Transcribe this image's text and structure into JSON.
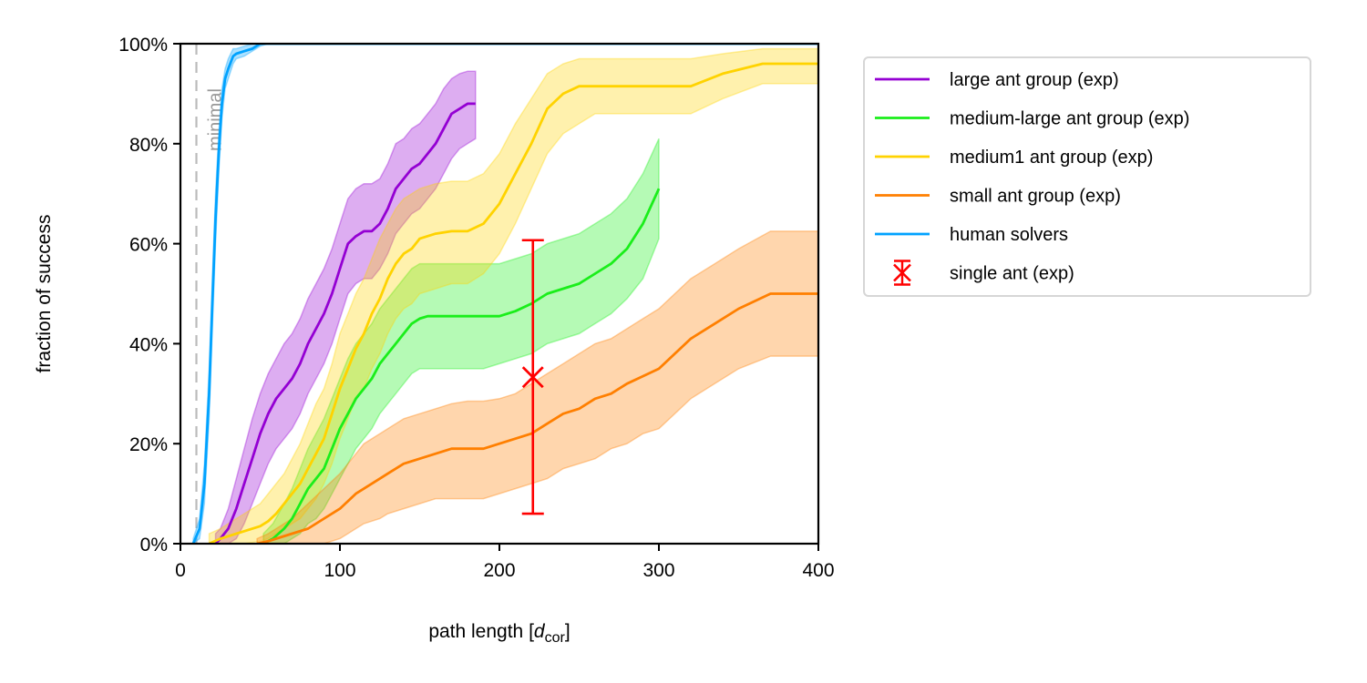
{
  "chart_data": {
    "type": "line",
    "xlabel": "path length [",
    "xlabel_symbol": "d",
    "xlabel_subscript": "cor",
    "xlabel_close": "]",
    "ylabel": "fraction of success",
    "xlim": [
      0,
      400
    ],
    "ylim": [
      0,
      1
    ],
    "xticks": [
      0,
      100,
      200,
      300,
      400
    ],
    "xtick_labels": [
      "0",
      "100",
      "200",
      "300",
      "400"
    ],
    "yticks": [
      0,
      0.2,
      0.4,
      0.6,
      0.8,
      1.0
    ],
    "ytick_labels": [
      "0%",
      "20%",
      "40%",
      "60%",
      "80%",
      "100%"
    ],
    "grid": false,
    "legend_position": "outside-right-top",
    "reference_line": {
      "x": 10,
      "label": "minimal",
      "color": "#bbbbbb",
      "style": "dashed"
    },
    "series": [
      {
        "name": "large ant group (exp)",
        "color": "#9400d3",
        "x": [
          22,
          25,
          30,
          35,
          40,
          45,
          50,
          55,
          60,
          65,
          70,
          75,
          80,
          85,
          90,
          95,
          100,
          105,
          110,
          115,
          120,
          125,
          130,
          135,
          140,
          145,
          150,
          155,
          160,
          165,
          170,
          175,
          180,
          185
        ],
        "y": [
          0,
          0.01,
          0.03,
          0.07,
          0.12,
          0.17,
          0.22,
          0.26,
          0.29,
          0.31,
          0.33,
          0.36,
          0.4,
          0.43,
          0.46,
          0.5,
          0.55,
          0.6,
          0.615,
          0.625,
          0.625,
          0.64,
          0.67,
          0.71,
          0.73,
          0.75,
          0.76,
          0.78,
          0.8,
          0.83,
          0.86,
          0.87,
          0.88,
          0.88
        ],
        "lower": [
          0,
          0.0,
          0.0,
          0.01,
          0.04,
          0.08,
          0.12,
          0.16,
          0.19,
          0.21,
          0.23,
          0.26,
          0.3,
          0.33,
          0.36,
          0.4,
          0.45,
          0.5,
          0.52,
          0.53,
          0.53,
          0.55,
          0.58,
          0.62,
          0.64,
          0.66,
          0.67,
          0.69,
          0.71,
          0.74,
          0.77,
          0.79,
          0.8,
          0.81
        ],
        "upper": [
          0.02,
          0.03,
          0.07,
          0.13,
          0.19,
          0.25,
          0.3,
          0.34,
          0.37,
          0.4,
          0.42,
          0.45,
          0.49,
          0.52,
          0.55,
          0.59,
          0.64,
          0.69,
          0.71,
          0.72,
          0.72,
          0.73,
          0.76,
          0.8,
          0.81,
          0.83,
          0.84,
          0.86,
          0.88,
          0.91,
          0.93,
          0.94,
          0.945,
          0.945
        ]
      },
      {
        "name": "medium-large ant group (exp)",
        "color": "#1aee1a",
        "x": [
          52,
          58,
          65,
          70,
          75,
          80,
          85,
          90,
          95,
          100,
          105,
          110,
          115,
          120,
          125,
          130,
          135,
          140,
          145,
          150,
          155,
          160,
          170,
          180,
          190,
          200,
          210,
          220,
          230,
          240,
          250,
          260,
          270,
          280,
          290,
          300
        ],
        "y": [
          0,
          0.01,
          0.03,
          0.05,
          0.08,
          0.11,
          0.13,
          0.15,
          0.19,
          0.23,
          0.26,
          0.29,
          0.31,
          0.33,
          0.36,
          0.38,
          0.4,
          0.42,
          0.44,
          0.45,
          0.455,
          0.455,
          0.455,
          0.455,
          0.455,
          0.455,
          0.465,
          0.48,
          0.5,
          0.51,
          0.52,
          0.54,
          0.56,
          0.59,
          0.64,
          0.71
        ],
        "lower": [
          0,
          0.0,
          0.0,
          0.01,
          0.02,
          0.04,
          0.05,
          0.07,
          0.1,
          0.13,
          0.16,
          0.19,
          0.21,
          0.23,
          0.26,
          0.28,
          0.3,
          0.32,
          0.34,
          0.35,
          0.35,
          0.35,
          0.35,
          0.35,
          0.35,
          0.36,
          0.37,
          0.38,
          0.4,
          0.41,
          0.42,
          0.44,
          0.46,
          0.49,
          0.53,
          0.61
        ],
        "upper": [
          0.02,
          0.04,
          0.08,
          0.11,
          0.15,
          0.19,
          0.22,
          0.25,
          0.29,
          0.33,
          0.37,
          0.4,
          0.42,
          0.44,
          0.47,
          0.49,
          0.51,
          0.53,
          0.55,
          0.56,
          0.56,
          0.56,
          0.56,
          0.56,
          0.56,
          0.56,
          0.57,
          0.58,
          0.6,
          0.61,
          0.62,
          0.64,
          0.66,
          0.69,
          0.74,
          0.81
        ]
      },
      {
        "name": "medium1 ant group (exp)",
        "color": "#ffd300",
        "x": [
          18,
          25,
          30,
          35,
          40,
          50,
          55,
          60,
          65,
          70,
          75,
          80,
          85,
          90,
          95,
          100,
          105,
          110,
          115,
          120,
          125,
          130,
          135,
          140,
          145,
          150,
          160,
          170,
          180,
          190,
          200,
          210,
          220,
          230,
          240,
          250,
          260,
          270,
          280,
          290,
          300,
          320,
          340,
          365,
          380,
          400
        ],
        "y": [
          0,
          0.01,
          0.015,
          0.02,
          0.025,
          0.035,
          0.045,
          0.06,
          0.08,
          0.1,
          0.12,
          0.15,
          0.18,
          0.21,
          0.26,
          0.31,
          0.35,
          0.39,
          0.42,
          0.46,
          0.49,
          0.53,
          0.56,
          0.58,
          0.59,
          0.61,
          0.62,
          0.625,
          0.625,
          0.64,
          0.68,
          0.74,
          0.8,
          0.87,
          0.9,
          0.915,
          0.915,
          0.915,
          0.915,
          0.915,
          0.915,
          0.915,
          0.94,
          0.96,
          0.96,
          0.96
        ],
        "lower": [
          0,
          0.0,
          0.0,
          0.0,
          0.0,
          0.005,
          0.01,
          0.02,
          0.03,
          0.04,
          0.05,
          0.07,
          0.09,
          0.12,
          0.16,
          0.21,
          0.25,
          0.29,
          0.31,
          0.35,
          0.38,
          0.42,
          0.45,
          0.47,
          0.48,
          0.5,
          0.51,
          0.52,
          0.52,
          0.54,
          0.58,
          0.64,
          0.71,
          0.78,
          0.82,
          0.84,
          0.86,
          0.86,
          0.86,
          0.86,
          0.86,
          0.86,
          0.89,
          0.92,
          0.92,
          0.92
        ],
        "upper": [
          0.02,
          0.03,
          0.04,
          0.05,
          0.06,
          0.08,
          0.1,
          0.12,
          0.14,
          0.17,
          0.2,
          0.24,
          0.28,
          0.31,
          0.36,
          0.42,
          0.46,
          0.5,
          0.53,
          0.57,
          0.61,
          0.64,
          0.67,
          0.69,
          0.7,
          0.71,
          0.72,
          0.725,
          0.725,
          0.74,
          0.78,
          0.84,
          0.89,
          0.94,
          0.96,
          0.97,
          0.97,
          0.97,
          0.97,
          0.97,
          0.97,
          0.97,
          0.98,
          0.99,
          0.99,
          0.99
        ]
      },
      {
        "name": "small ant group (exp)",
        "color": "#ff7f00",
        "x": [
          48,
          55,
          60,
          70,
          80,
          90,
          100,
          110,
          115,
          125,
          130,
          140,
          150,
          160,
          170,
          180,
          190,
          200,
          210,
          220,
          230,
          240,
          250,
          260,
          270,
          280,
          290,
          300,
          310,
          320,
          335,
          350,
          370,
          380,
          400
        ],
        "y": [
          0,
          0.005,
          0.01,
          0.02,
          0.03,
          0.05,
          0.07,
          0.1,
          0.11,
          0.13,
          0.14,
          0.16,
          0.17,
          0.18,
          0.19,
          0.19,
          0.19,
          0.2,
          0.21,
          0.22,
          0.24,
          0.26,
          0.27,
          0.29,
          0.3,
          0.32,
          0.335,
          0.35,
          0.38,
          0.41,
          0.44,
          0.47,
          0.5,
          0.5,
          0.5
        ],
        "lower": [
          0,
          0.0,
          0.0,
          0.0,
          0.0,
          0.0,
          0.01,
          0.03,
          0.04,
          0.05,
          0.06,
          0.07,
          0.08,
          0.09,
          0.09,
          0.09,
          0.09,
          0.1,
          0.11,
          0.12,
          0.13,
          0.15,
          0.16,
          0.17,
          0.19,
          0.2,
          0.22,
          0.23,
          0.26,
          0.29,
          0.32,
          0.35,
          0.375,
          0.375,
          0.375
        ],
        "upper": [
          0.01,
          0.02,
          0.03,
          0.05,
          0.08,
          0.11,
          0.14,
          0.18,
          0.2,
          0.22,
          0.23,
          0.25,
          0.26,
          0.27,
          0.28,
          0.285,
          0.285,
          0.29,
          0.3,
          0.32,
          0.34,
          0.36,
          0.38,
          0.4,
          0.41,
          0.43,
          0.45,
          0.47,
          0.5,
          0.53,
          0.56,
          0.59,
          0.625,
          0.625,
          0.625
        ]
      },
      {
        "name": "human solvers",
        "color": "#00a2ff",
        "x": [
          8,
          12,
          15,
          18,
          20,
          22,
          24,
          26,
          28,
          30,
          33,
          35,
          40,
          45,
          50,
          55,
          60,
          70,
          80,
          100,
          150,
          200,
          300,
          400
        ],
        "y": [
          0,
          0.03,
          0.12,
          0.3,
          0.48,
          0.65,
          0.78,
          0.88,
          0.93,
          0.95,
          0.975,
          0.98,
          0.985,
          0.99,
          1.0,
          1.0,
          1.0,
          1.0,
          1.0,
          1.0,
          1.0,
          1.0,
          1.0,
          1.0
        ],
        "lower": [
          0,
          0.01,
          0.08,
          0.25,
          0.43,
          0.6,
          0.74,
          0.85,
          0.91,
          0.93,
          0.96,
          0.97,
          0.975,
          0.985,
          0.995,
          1.0,
          1.0,
          1.0,
          1.0,
          1.0,
          1.0,
          1.0,
          1.0,
          1.0
        ],
        "upper": [
          0.01,
          0.05,
          0.16,
          0.35,
          0.53,
          0.7,
          0.82,
          0.91,
          0.95,
          0.97,
          0.99,
          0.99,
          0.995,
          1.0,
          1.0,
          1.0,
          1.0,
          1.0,
          1.0,
          1.0,
          1.0,
          1.0,
          1.0,
          1.0
        ]
      }
    ],
    "errorbar_series": {
      "name": "single ant (exp)",
      "color": "#ff0000",
      "x": 221,
      "y": 0.333,
      "lower": 0.06,
      "upper": 0.607
    }
  }
}
